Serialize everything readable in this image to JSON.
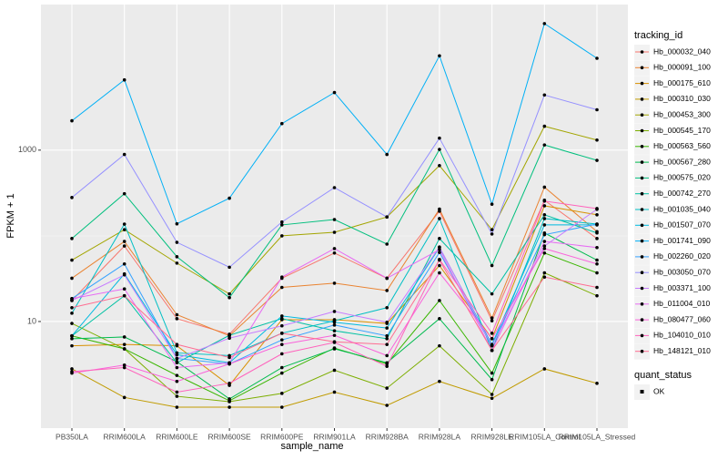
{
  "chart_data": {
    "type": "line",
    "log_scale_y": true,
    "grid": true,
    "x_label": "sample_name",
    "y_label": "FPKM + 1",
    "legend_title": "tracking_id",
    "legend_position": "right",
    "shape_legend_title": "quant_status",
    "shape_legend_items": [
      "OK"
    ],
    "categories": [
      "PB350LA",
      "RRIM600LA",
      "RRIM600LE",
      "RRIM600SE",
      "RRIM600PE",
      "RRIM901LA",
      "RRIM928BA",
      "RRIM928LA",
      "RRIM928LE",
      "RRIM105LA_Control",
      "RRIM105LA_Stressed"
    ],
    "ylim": [
      0.57,
      50000
    ],
    "yticks": [
      10,
      1000
    ],
    "series": [
      {
        "name": "Hb_000032_040",
        "color": "#F8766D",
        "values": [
          17.6,
          76,
          10.8,
          7.1,
          32,
          63,
          32,
          194,
          10.2,
          260,
          93
        ]
      },
      {
        "name": "Hb_000091_100",
        "color": "#EA8331",
        "values": [
          32,
          86,
          12,
          6.8,
          25,
          28,
          23,
          205,
          11,
          370,
          112
        ]
      },
      {
        "name": "Hb_000175_610",
        "color": "#D89000",
        "values": [
          5.2,
          5.4,
          5.2,
          1.8,
          10.5,
          10.5,
          9.5,
          45,
          6.3,
          224,
          176
        ]
      },
      {
        "name": "Hb_000310_030",
        "color": "#C09B00",
        "values": [
          2.8,
          1.3,
          1.0,
          1.0,
          1.0,
          1.5,
          1.05,
          2.0,
          1.27,
          2.8,
          1.9
        ]
      },
      {
        "name": "Hb_000453_300",
        "color": "#A3A500",
        "values": [
          52,
          118,
          48,
          21,
          100,
          110,
          166,
          660,
          118,
          1900,
          1310
        ]
      },
      {
        "name": "Hb_000545_170",
        "color": "#7CAE00",
        "values": [
          9.5,
          4.8,
          1.34,
          1.16,
          1.45,
          2.7,
          1.67,
          5.2,
          1.41,
          37,
          20
        ]
      },
      {
        "name": "Hb_000563_560",
        "color": "#39B600",
        "values": [
          6.8,
          4.8,
          2.35,
          1.19,
          2.5,
          4.9,
          3.2,
          17.6,
          2.5,
          63,
          37
        ]
      },
      {
        "name": "Hb_000567_280",
        "color": "#00BB4E",
        "values": [
          6.3,
          6.6,
          3.4,
          1.25,
          2.9,
          4.8,
          3.3,
          10.8,
          2.1,
          108,
          52
        ]
      },
      {
        "name": "Hb_000575_020",
        "color": "#00BF7D",
        "values": [
          93,
          310,
          57,
          19,
          134,
          155,
          80,
          1020,
          45,
          1150,
          760
        ]
      },
      {
        "name": "Hb_000742_270",
        "color": "#00C1A3",
        "values": [
          6.8,
          20,
          3.3,
          6.9,
          10.8,
          7.8,
          6.3,
          93,
          21,
          176,
          108
        ]
      },
      {
        "name": "Hb_001035_040",
        "color": "#00BFC4",
        "values": [
          12.5,
          137,
          4.3,
          4.0,
          7.3,
          10.2,
          14.5,
          159,
          4.6,
          159,
          137
        ]
      },
      {
        "name": "Hb_001507_070",
        "color": "#00BAE0",
        "values": [
          6.8,
          36,
          4.1,
          3.3,
          11.6,
          9.8,
          8.4,
          73,
          5.4,
          134,
          134
        ]
      },
      {
        "name": "Hb_001741_090",
        "color": "#00B0F6",
        "values": [
          2200,
          6600,
          138,
          275,
          2040,
          4700,
          890,
          12600,
          234,
          30000,
          11800
        ]
      },
      {
        "name": "Hb_002260_020",
        "color": "#35A2FF",
        "values": [
          18.5,
          47,
          3.7,
          3.2,
          6.1,
          9.1,
          6.8,
          64,
          5.2,
          103,
          137
        ]
      },
      {
        "name": "Hb_003050_070",
        "color": "#9590FF",
        "values": [
          280,
          890,
          84,
          43,
          145,
          365,
          166,
          1380,
          105,
          4400,
          2960
        ]
      },
      {
        "name": "Hb_003371_100",
        "color": "#C77CFF",
        "values": [
          17.6,
          35,
          3.7,
          6.4,
          8.9,
          13.1,
          9.8,
          74,
          5.2,
          76,
          204
        ]
      },
      {
        "name": "Hb_011004_010",
        "color": "#E76BF3",
        "values": [
          18.5,
          24,
          2.9,
          3.3,
          33,
          71,
          32,
          69,
          4.6,
          86,
          73
        ]
      },
      {
        "name": "Hb_080477_060",
        "color": "#FA62DB",
        "values": [
          2.5,
          3.1,
          2.0,
          3.2,
          5.4,
          6.9,
          4.0,
          37,
          6.3,
          71,
          47
        ]
      },
      {
        "name": "Hb_104010_010",
        "color": "#FF62BC",
        "values": [
          2.6,
          2.9,
          1.5,
          1.9,
          4.2,
          5.7,
          3.0,
          53,
          7.3,
          254,
          208
        ]
      },
      {
        "name": "Hb_148121_010",
        "color": "#FF6C91",
        "values": [
          14.5,
          20,
          5.4,
          3.8,
          7.3,
          5.8,
          5.4,
          52,
          4.6,
          33,
          25
        ]
      }
    ]
  }
}
